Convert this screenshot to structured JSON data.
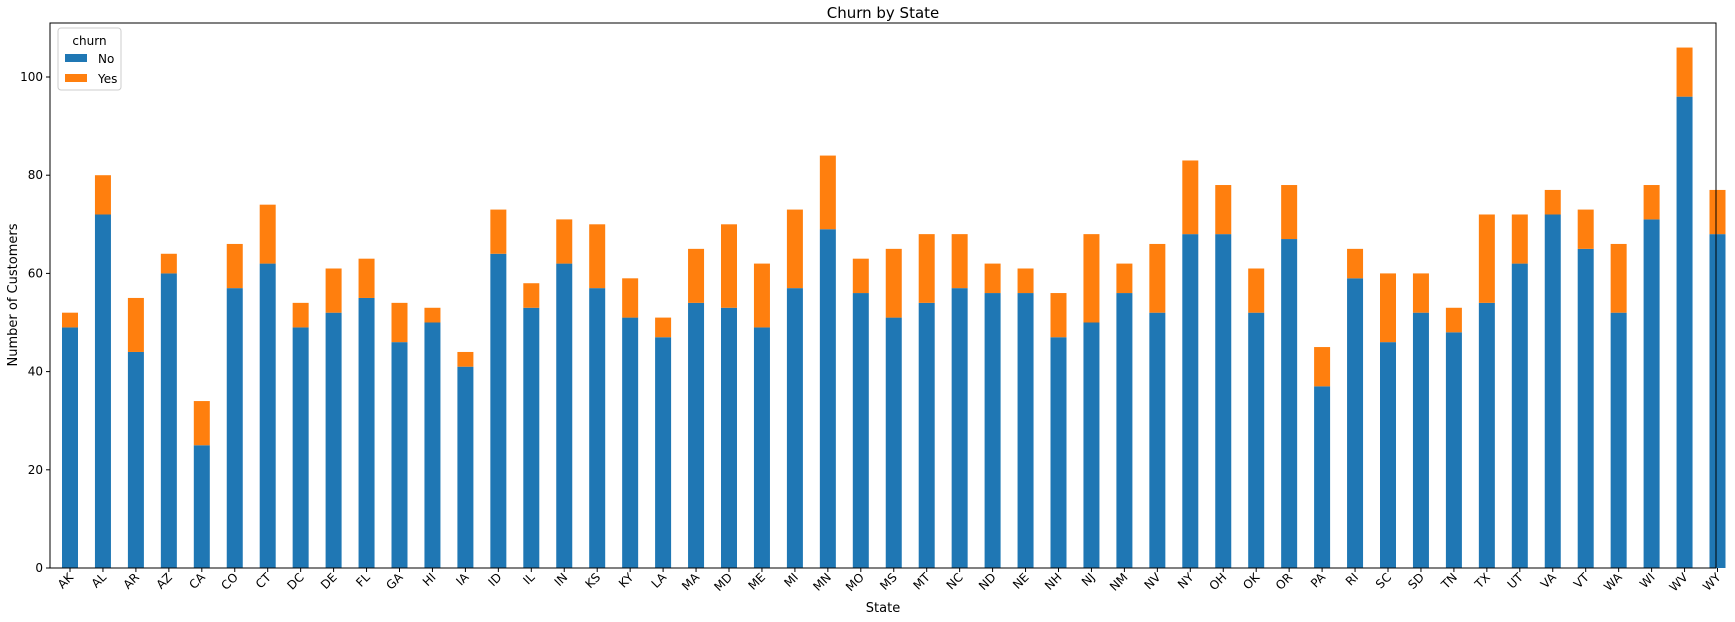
{
  "chart_data": {
    "type": "bar",
    "stacked": true,
    "title": "Churn by State",
    "xlabel": "State",
    "ylabel": "Number of Customers",
    "ylim": [
      0,
      111
    ],
    "yticks": [
      0,
      20,
      40,
      60,
      80,
      100
    ],
    "grid": false,
    "legend": {
      "title": "churn",
      "position": "top-left"
    },
    "categories": [
      "AK",
      "AL",
      "AR",
      "AZ",
      "CA",
      "CO",
      "CT",
      "DC",
      "DE",
      "FL",
      "GA",
      "HI",
      "IA",
      "ID",
      "IL",
      "IN",
      "KS",
      "KY",
      "LA",
      "MA",
      "MD",
      "ME",
      "MI",
      "MN",
      "MO",
      "MS",
      "MT",
      "NC",
      "ND",
      "NE",
      "NH",
      "NJ",
      "NM",
      "NV",
      "NY",
      "OH",
      "OK",
      "OR",
      "PA",
      "RI",
      "SC",
      "SD",
      "TN",
      "TX",
      "UT",
      "VA",
      "VT",
      "WA",
      "WI",
      "WV",
      "WY"
    ],
    "series": [
      {
        "name": "No",
        "color": "#1f77b4",
        "values": [
          49,
          72,
          44,
          60,
          25,
          57,
          62,
          49,
          52,
          55,
          46,
          50,
          41,
          64,
          53,
          62,
          57,
          51,
          47,
          54,
          53,
          49,
          57,
          69,
          56,
          51,
          54,
          57,
          56,
          56,
          47,
          50,
          56,
          52,
          68,
          68,
          52,
          67,
          37,
          59,
          46,
          52,
          48,
          54,
          62,
          72,
          65,
          52,
          71,
          96,
          68
        ]
      },
      {
        "name": "Yes",
        "color": "#ff7f0e",
        "values": [
          3,
          8,
          11,
          4,
          9,
          9,
          12,
          5,
          9,
          8,
          8,
          3,
          3,
          9,
          5,
          9,
          13,
          8,
          4,
          11,
          17,
          13,
          16,
          15,
          7,
          14,
          14,
          11,
          6,
          5,
          9,
          18,
          6,
          14,
          15,
          10,
          9,
          11,
          8,
          6,
          14,
          8,
          5,
          18,
          10,
          5,
          8,
          14,
          7,
          10,
          9
        ]
      }
    ]
  }
}
